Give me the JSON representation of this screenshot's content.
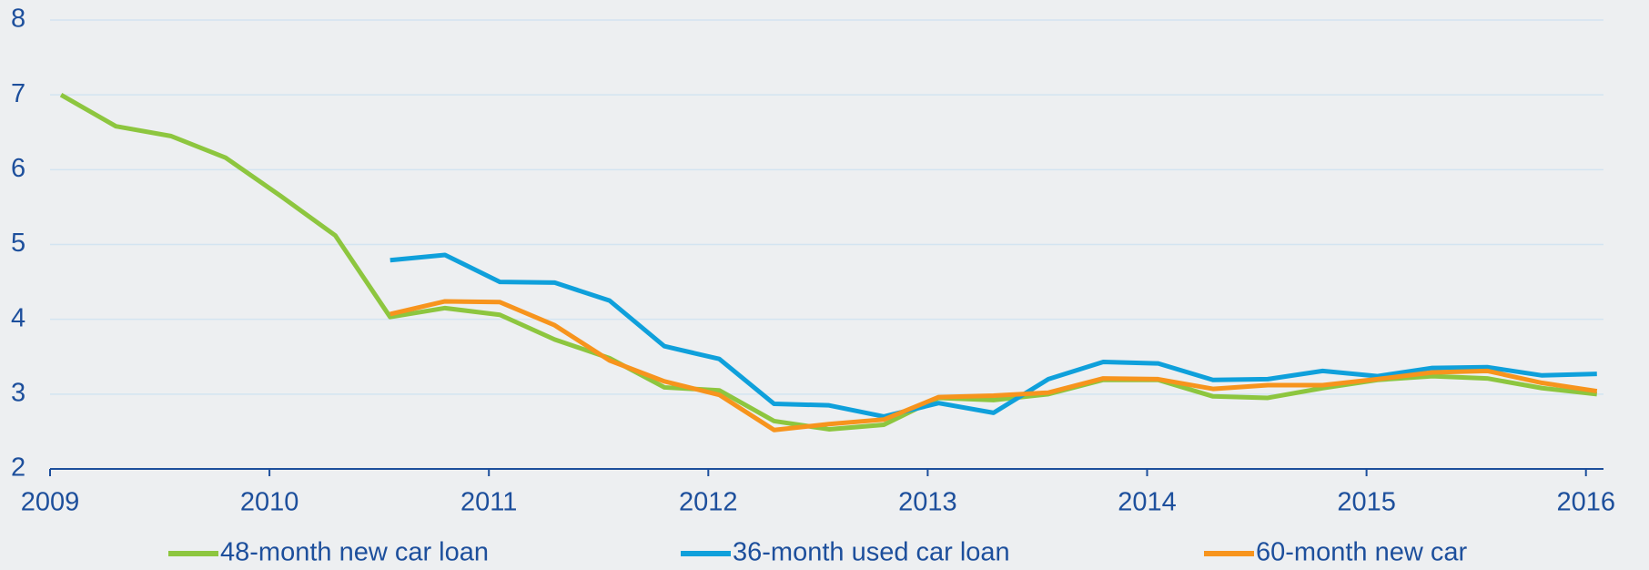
{
  "chart_data": {
    "type": "line",
    "x": [
      2009.05,
      2009.3,
      2009.55,
      2009.8,
      2010.05,
      2010.3,
      2010.55,
      2010.8,
      2011.05,
      2011.3,
      2011.55,
      2011.8,
      2012.05,
      2012.3,
      2012.55,
      2012.8,
      2013.05,
      2013.3,
      2013.55,
      2013.8,
      2014.05,
      2014.3,
      2014.55,
      2014.8,
      2015.05,
      2015.3,
      2015.55,
      2015.8,
      2016.05
    ],
    "series": [
      {
        "name": "48-month new car loan",
        "color": "#8dc63f",
        "values": [
          7.0,
          6.58,
          6.45,
          6.16,
          5.65,
          5.12,
          4.03,
          4.15,
          4.06,
          3.73,
          3.48,
          3.09,
          3.05,
          2.64,
          2.53,
          2.59,
          2.95,
          2.92,
          3.0,
          3.19,
          3.19,
          2.97,
          2.95,
          3.08,
          3.19,
          3.24,
          3.21,
          3.08,
          3.0
        ]
      },
      {
        "name": "36-month used car loan",
        "color": "#0fa0db",
        "values": [
          null,
          null,
          null,
          null,
          null,
          null,
          4.79,
          4.86,
          4.5,
          4.49,
          4.25,
          3.64,
          3.47,
          2.87,
          2.85,
          2.7,
          2.88,
          2.75,
          3.2,
          3.43,
          3.41,
          3.19,
          3.2,
          3.31,
          3.24,
          3.35,
          3.36,
          3.25,
          3.27
        ]
      },
      {
        "name": "60-month new car",
        "color": "#f7941d",
        "values": [
          null,
          null,
          null,
          null,
          null,
          null,
          4.07,
          4.24,
          4.23,
          3.92,
          3.45,
          3.17,
          2.99,
          2.52,
          2.6,
          2.66,
          2.96,
          2.98,
          3.02,
          3.21,
          3.2,
          3.07,
          3.12,
          3.12,
          3.2,
          3.29,
          3.31,
          3.15,
          3.04
        ]
      }
    ],
    "xlim": [
      2009,
      2016.08
    ],
    "xticks": [
      2009,
      2010,
      2011,
      2012,
      2013,
      2014,
      2015,
      2016
    ],
    "ylim": [
      2,
      8
    ],
    "yticks": [
      2,
      3,
      4,
      5,
      6,
      7,
      8
    ],
    "grid": true,
    "legend": "bottom"
  }
}
